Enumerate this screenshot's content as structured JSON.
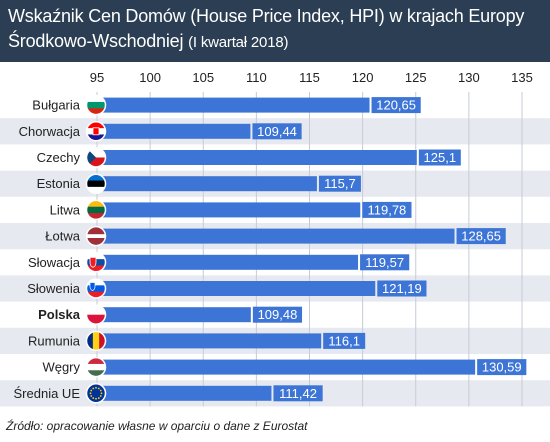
{
  "header": {
    "title_main": "Wskaźnik Cen Domów (House Price Index, HPI) w krajach Europy Środkowo-Wschodniej",
    "title_sub": "(I kwartał 2018)"
  },
  "colors": {
    "header_bg": "#2b3e53",
    "bar": "#3d75d6",
    "stripe": "#e6e9f0",
    "bar_label_bg": "#3d75d6",
    "bar_label_text": "#ffffff"
  },
  "chart_data": {
    "type": "bar",
    "orientation": "horizontal",
    "categories": [
      "Bułgaria",
      "Chorwacja",
      "Czechy",
      "Estonia",
      "Litwa",
      "Łotwa",
      "Słowacja",
      "Słowenia",
      "Polska",
      "Rumunia",
      "Węgry",
      "Średnia UE"
    ],
    "values": [
      120.65,
      109.44,
      125.1,
      115.7,
      119.78,
      128.65,
      119.57,
      121.19,
      109.48,
      116.1,
      130.59,
      111.42
    ],
    "value_labels": [
      "120,65",
      "109,44",
      "125,1",
      "115,7",
      "119,78",
      "128,65",
      "119,57",
      "121,19",
      "109,48",
      "116,1",
      "130,59",
      "111,42"
    ],
    "highlight_category": "Polska",
    "xlim": [
      95,
      135
    ],
    "xticks": [
      95,
      100,
      105,
      110,
      115,
      120,
      125,
      130,
      135
    ],
    "xtick_labels": [
      "95",
      "100",
      "105",
      "110",
      "115",
      "120",
      "125",
      "130",
      "135"
    ],
    "grid": true,
    "flags": [
      "bg",
      "hr",
      "cz",
      "ee",
      "lt",
      "lv",
      "sk",
      "si",
      "pl",
      "ro",
      "hu",
      "eu"
    ]
  },
  "source": "Źródło: opracowanie własne w oparciu o dane z Eurostat"
}
